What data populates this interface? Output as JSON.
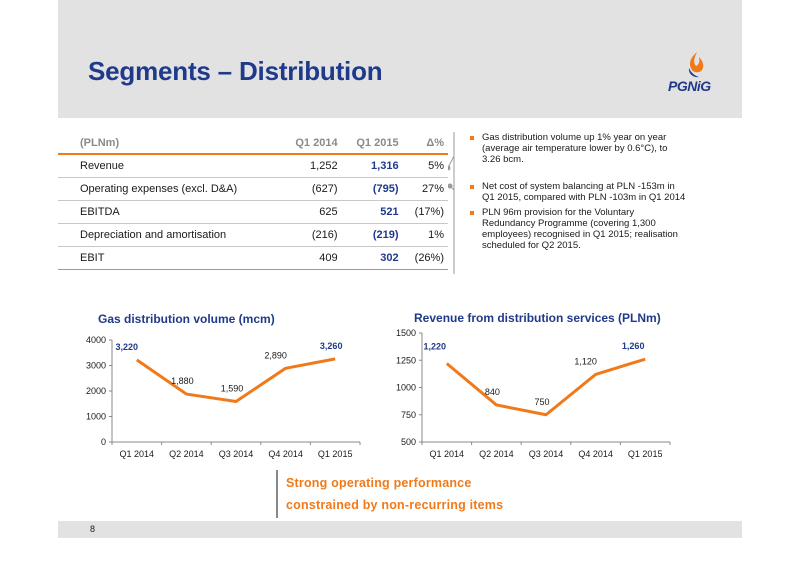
{
  "slide": {
    "title": "Segments – Distribution",
    "logo_text": "PGNiG",
    "page_number": "8"
  },
  "table": {
    "headers": [
      "(PLNm)",
      "Q1 2014",
      "Q1 2015",
      "Δ%"
    ],
    "rows": [
      {
        "label": "Revenue",
        "q1_2014": "1,252",
        "q1_2015": "1,316",
        "delta": "5%"
      },
      {
        "label": "Operating expenses (excl. D&A)",
        "q1_2014": "(627)",
        "q1_2015": "(795)",
        "delta": "27%"
      },
      {
        "label": "EBITDA",
        "q1_2014": "625",
        "q1_2015": "521",
        "delta": "(17%)"
      },
      {
        "label": "Depreciation and amortisation",
        "q1_2014": "(216)",
        "q1_2015": "(219)",
        "delta": "1%"
      },
      {
        "label": "EBIT",
        "q1_2014": "409",
        "q1_2015": "302",
        "delta": "(26%)"
      }
    ]
  },
  "bullets": [
    "Gas distribution volume up 1% year on year (average air temperature lower by 0.6°C), to 3.26 bcm.",
    "Net cost of system balancing at PLN -153m in Q1 2015, compared with PLN -103m in Q1 2014",
    "PLN 96m provision for the Voluntary Redundancy Programme (covering 1,300 employees) recognised in Q1 2015; realisation scheduled for Q2 2015."
  ],
  "callout": {
    "line1": "Strong operating performance",
    "line2": "constrained by non-recurring items"
  },
  "colors": {
    "accent": "#f07a1a",
    "brand": "#1f3a8a",
    "band": "#e2e2e2"
  },
  "chart_data": [
    {
      "type": "line",
      "title": "Gas distribution volume (mcm)",
      "categories": [
        "Q1 2014",
        "Q2 2014",
        "Q3 2014",
        "Q4 2014",
        "Q1 2015"
      ],
      "values": [
        3220,
        1880,
        1590,
        2890,
        3260
      ],
      "labels": [
        "3,220",
        "1,880",
        "1,590",
        "2,890",
        "3,260"
      ],
      "bold_labels": [
        0,
        4
      ],
      "ylim": [
        0,
        4000
      ],
      "yticks": [
        0,
        1000,
        2000,
        3000,
        4000
      ],
      "color": "#f07a1a"
    },
    {
      "type": "line",
      "title": "Revenue from distribution services (PLNm)",
      "categories": [
        "Q1 2014",
        "Q2 2014",
        "Q3 2014",
        "Q4 2014",
        "Q1 2015"
      ],
      "values": [
        1220,
        840,
        750,
        1120,
        1260
      ],
      "labels": [
        "1,220",
        "840",
        "750",
        "1,120",
        "1,260"
      ],
      "bold_labels": [
        0,
        4
      ],
      "ylim": [
        500,
        1500
      ],
      "yticks": [
        500,
        750,
        1000,
        1250,
        1500
      ],
      "color": "#f07a1a"
    }
  ]
}
